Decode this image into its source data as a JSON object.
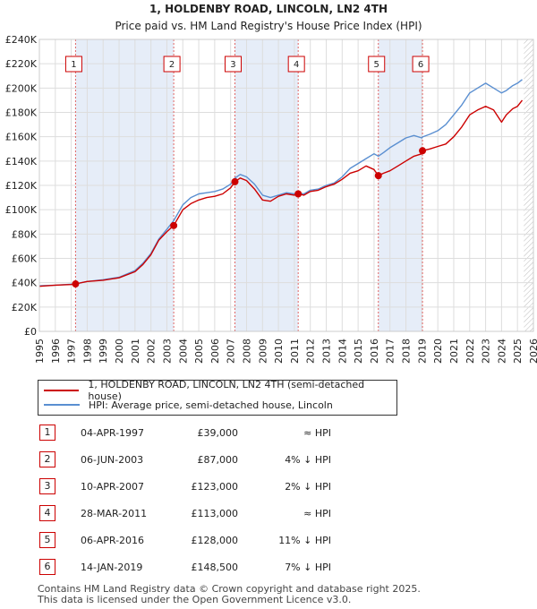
{
  "chart_data": {
    "type": "line",
    "title": "1, HOLDENBY ROAD, LINCOLN, LN2 4TH",
    "subtitle": "Price paid vs. HM Land Registry's House Price Index (HPI)",
    "xlim": [
      1995,
      2026
    ],
    "ylim": [
      0,
      240000
    ],
    "x_ticks": [
      1995,
      1996,
      1997,
      1998,
      1999,
      2000,
      2001,
      2002,
      2003,
      2004,
      2005,
      2006,
      2007,
      2008,
      2009,
      2010,
      2011,
      2012,
      2013,
      2014,
      2015,
      2016,
      2017,
      2018,
      2019,
      2020,
      2021,
      2022,
      2023,
      2024,
      2025,
      2026
    ],
    "y_ticks": [
      0,
      20000,
      40000,
      60000,
      80000,
      100000,
      120000,
      140000,
      160000,
      180000,
      200000,
      220000,
      240000
    ],
    "y_tick_labels": [
      "£0",
      "£20K",
      "£40K",
      "£60K",
      "£80K",
      "£100K",
      "£120K",
      "£140K",
      "£160K",
      "£180K",
      "£200K",
      "£220K",
      "£240K"
    ],
    "shaded_ranges": [
      [
        1997.27,
        2003.43
      ],
      [
        2007.27,
        2011.24
      ],
      [
        2016.27,
        2019.04
      ]
    ],
    "future_hatch_start": 2025.4,
    "series": [
      {
        "name": "1, HOLDENBY ROAD, LINCOLN, LN2 4TH (semi-detached house)",
        "color": "#cc0000",
        "x": [
          1995,
          1996,
          1997,
          1997.27,
          1998,
          1999,
          2000,
          2001,
          2001.5,
          2002,
          2002.5,
          2003,
          2003.43,
          2004,
          2004.5,
          2005,
          2005.5,
          2006,
          2006.5,
          2007,
          2007.27,
          2007.6,
          2008,
          2008.5,
          2009,
          2009.5,
          2010,
          2010.5,
          2011,
          2011.24,
          2011.6,
          2012,
          2012.5,
          2013,
          2013.5,
          2014,
          2014.5,
          2015,
          2015.5,
          2016,
          2016.27,
          2016.6,
          2017,
          2017.5,
          2018,
          2018.5,
          2019,
          2019.04,
          2019.5,
          2020,
          2020.5,
          2021,
          2021.5,
          2022,
          2022.5,
          2023,
          2023.5,
          2024,
          2024.3,
          2024.7,
          2025,
          2025.3
        ],
        "y": [
          37000,
          38000,
          38500,
          39000,
          41000,
          42000,
          44000,
          49000,
          55000,
          63000,
          75000,
          82000,
          87000,
          100000,
          105000,
          108000,
          110000,
          111000,
          113000,
          118000,
          123000,
          126000,
          124000,
          117000,
          108000,
          107000,
          111000,
          113000,
          112000,
          113000,
          112000,
          115000,
          116000,
          119000,
          121000,
          125000,
          130000,
          132000,
          136000,
          133000,
          128000,
          130000,
          132000,
          136000,
          140000,
          144000,
          146000,
          148500,
          150000,
          152000,
          154000,
          160000,
          168000,
          178000,
          182000,
          185000,
          182000,
          172000,
          178000,
          183000,
          185000,
          190000
        ]
      },
      {
        "name": "HPI: Average price, semi-detached house, Lincoln",
        "color": "#5a8fd1",
        "x": [
          1995,
          1996,
          1997,
          1997.27,
          1998,
          1999,
          2000,
          2001,
          2001.5,
          2002,
          2002.5,
          2003,
          2003.43,
          2004,
          2004.5,
          2005,
          2005.5,
          2006,
          2006.5,
          2007,
          2007.27,
          2007.6,
          2008,
          2008.5,
          2009,
          2009.5,
          2010,
          2010.5,
          2011,
          2011.24,
          2011.6,
          2012,
          2012.5,
          2013,
          2013.5,
          2014,
          2014.5,
          2015,
          2015.5,
          2016,
          2016.27,
          2016.6,
          2017,
          2017.5,
          2018,
          2018.5,
          2019,
          2019.04,
          2019.5,
          2020,
          2020.5,
          2021,
          2021.5,
          2022,
          2022.5,
          2023,
          2023.5,
          2024,
          2024.3,
          2024.7,
          2025,
          2025.3
        ],
        "y": [
          37500,
          38000,
          38800,
          39100,
          41000,
          42500,
          44500,
          50000,
          56000,
          64000,
          76000,
          84000,
          91000,
          104000,
          110000,
          113000,
          114000,
          115000,
          117000,
          121000,
          126000,
          129000,
          127000,
          121000,
          112000,
          110000,
          112000,
          114000,
          113000,
          113500,
          113000,
          116000,
          117000,
          120000,
          122000,
          127000,
          134000,
          138000,
          142000,
          146000,
          144000,
          147000,
          151000,
          155000,
          159000,
          161000,
          159000,
          159800,
          162000,
          165000,
          170000,
          178000,
          186000,
          196000,
          200000,
          204000,
          200000,
          196000,
          198000,
          202000,
          204000,
          207000
        ]
      }
    ],
    "sale_points": [
      {
        "label": "1",
        "x": 1997.27,
        "y": 39000
      },
      {
        "label": "2",
        "x": 2003.43,
        "y": 87000
      },
      {
        "label": "3",
        "x": 2007.27,
        "y": 123000
      },
      {
        "label": "4",
        "x": 2011.24,
        "y": 113000
      },
      {
        "label": "5",
        "x": 2016.27,
        "y": 128000
      },
      {
        "label": "6",
        "x": 2019.04,
        "y": 148500
      }
    ]
  },
  "legend": {
    "property": "1, HOLDENBY ROAD, LINCOLN, LN2 4TH (semi-detached house)",
    "hpi": "HPI: Average price, semi-detached house, Lincoln"
  },
  "sales": [
    {
      "num": "1",
      "date": "04-APR-1997",
      "price": "£39,000",
      "rel": "≈ HPI"
    },
    {
      "num": "2",
      "date": "06-JUN-2003",
      "price": "£87,000",
      "rel": "4% ↓ HPI"
    },
    {
      "num": "3",
      "date": "10-APR-2007",
      "price": "£123,000",
      "rel": "2% ↓ HPI"
    },
    {
      "num": "4",
      "date": "28-MAR-2011",
      "price": "£113,000",
      "rel": "≈ HPI"
    },
    {
      "num": "5",
      "date": "06-APR-2016",
      "price": "£128,000",
      "rel": "11% ↓ HPI"
    },
    {
      "num": "6",
      "date": "14-JAN-2019",
      "price": "£148,500",
      "rel": "7% ↓ HPI"
    }
  ],
  "footer": {
    "line1": "Contains HM Land Registry data © Crown copyright and database right 2025.",
    "line2": "This data is licensed under the Open Government Licence v3.0."
  }
}
